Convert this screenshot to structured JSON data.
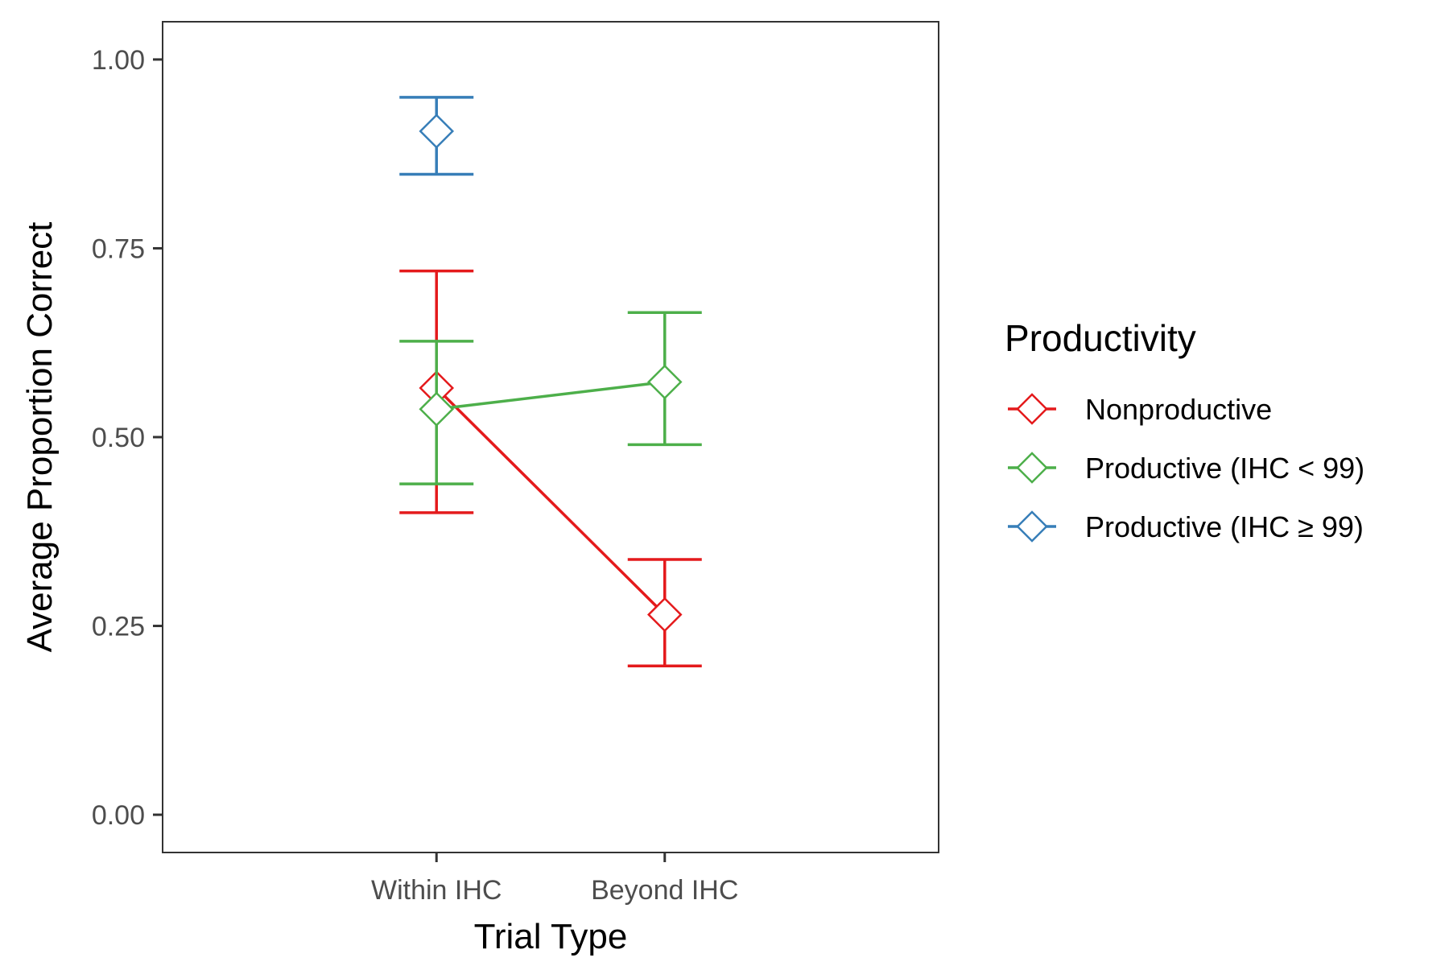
{
  "chart_data": {
    "type": "line",
    "xlabel": "Trial Type",
    "ylabel": "Average Proportion Correct",
    "categories": [
      "Within IHC",
      "Beyond IHC"
    ],
    "ylim": [
      -0.05,
      1.05
    ],
    "yticks": [
      "0.00",
      "0.25",
      "0.50",
      "0.75",
      "1.00"
    ],
    "grid": false,
    "legend": {
      "title": "Productivity",
      "position": "right"
    },
    "series": [
      {
        "name": "Nonproductive",
        "color": "#e41a1c",
        "values": [
          0.565,
          0.265
        ],
        "error_low": [
          0.4,
          0.197
        ],
        "error_high": [
          0.72,
          0.338
        ]
      },
      {
        "name": "Productive (IHC < 99)",
        "color": "#4daf4a",
        "values": [
          0.537,
          0.573
        ],
        "error_low": [
          0.438,
          0.49
        ],
        "error_high": [
          0.627,
          0.665
        ]
      },
      {
        "name": "Productive (IHC ≥ 99)",
        "color": "#377eb8",
        "values": [
          0.905,
          null
        ],
        "error_low": [
          0.848,
          null
        ],
        "error_high": [
          0.95,
          null
        ]
      }
    ]
  }
}
